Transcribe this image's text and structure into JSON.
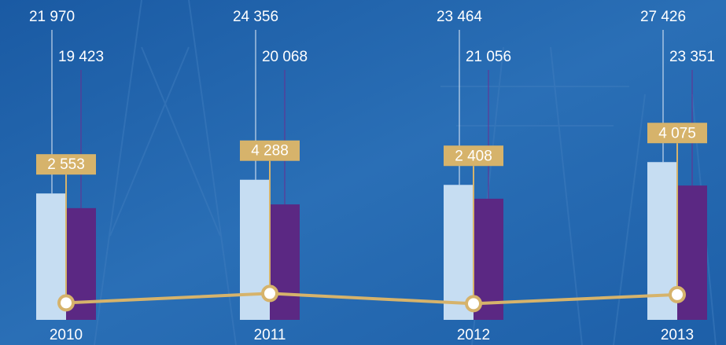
{
  "chart_data": {
    "type": "bar",
    "categories": [
      "2010",
      "2011",
      "2012",
      "2013"
    ],
    "series": [
      {
        "color": "#c6ddf2",
        "values": [
          21970,
          24356,
          23464,
          27426
        ],
        "value_labels": [
          "21 970",
          "24 356",
          "23 464",
          "27 426"
        ]
      },
      {
        "color": "#5b2883",
        "values": [
          19423,
          20068,
          21056,
          23351
        ],
        "value_labels": [
          "19 423",
          "20 068",
          "21 056",
          "23 351"
        ]
      },
      {
        "type": "line",
        "color": "#d6b36b",
        "values": [
          2553,
          4288,
          2408,
          4075
        ],
        "value_labels": [
          "2 553",
          "4 288",
          "2 408",
          "4 075"
        ]
      }
    ]
  }
}
